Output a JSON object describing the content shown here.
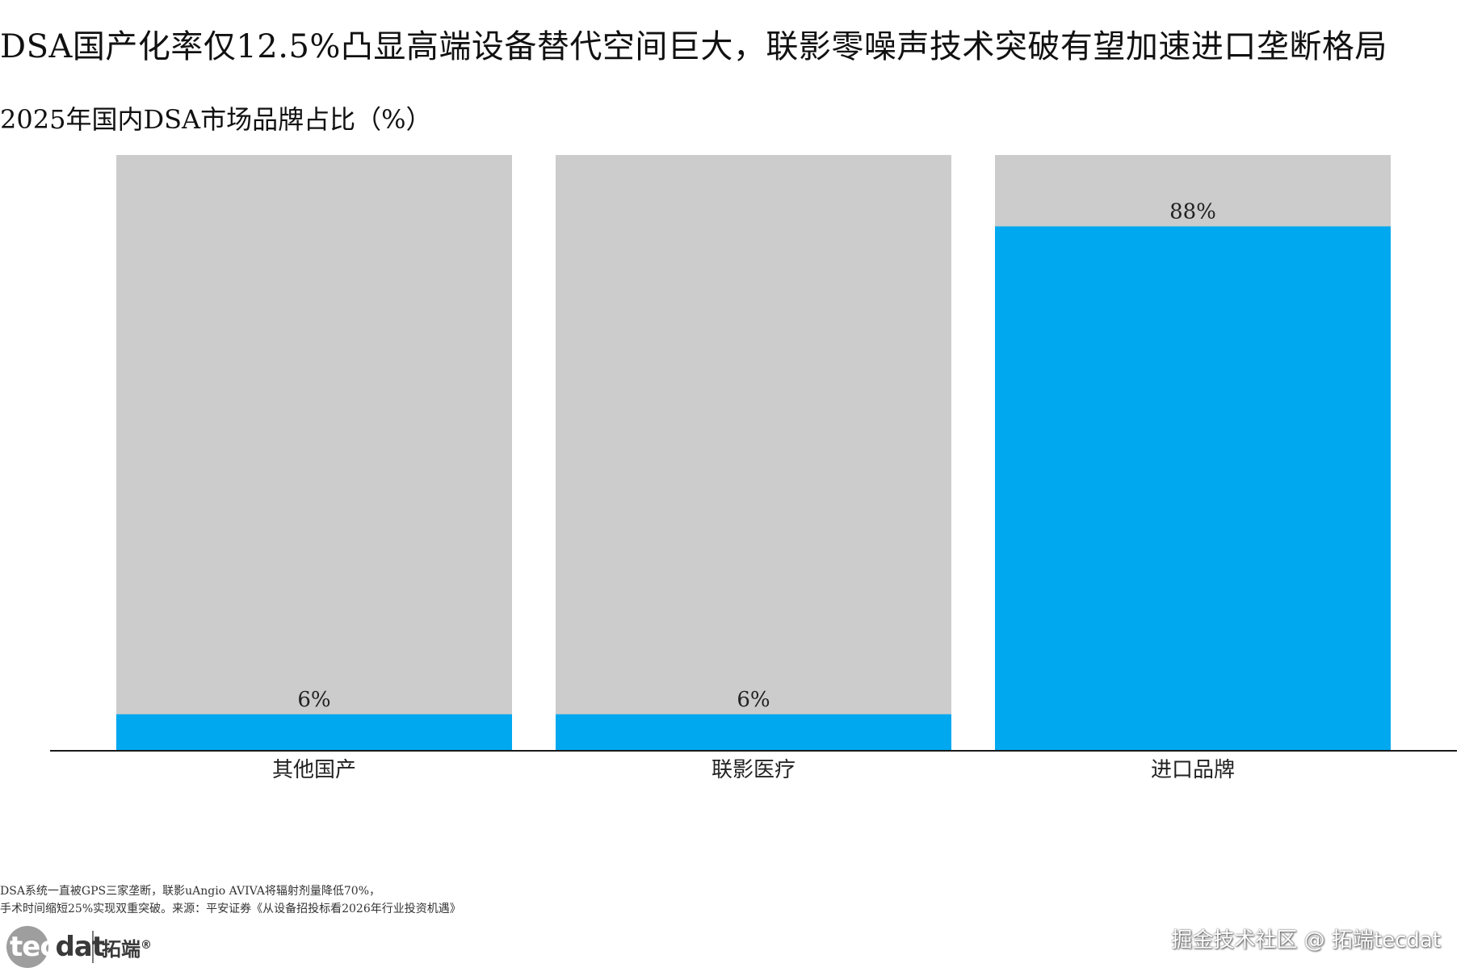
{
  "header": {
    "title": "DSA国产化率仅12.5%凸显高端设备替代空间巨大，联影零噪声技术突破有望加速进口垄断格局",
    "subtitle": "2025年国内DSA市场品牌占比（%）"
  },
  "chart_data": {
    "type": "bar",
    "categories": [
      "其他国产",
      "联影医疗",
      "进口品牌"
    ],
    "values": [
      6,
      6,
      88
    ],
    "value_labels": [
      "6%",
      "6%",
      "88%"
    ],
    "ylim": [
      0,
      100
    ],
    "xlabel": "",
    "ylabel": "",
    "grid": false,
    "legend": "none",
    "stacked_remainder": true,
    "colors": {
      "value": "#00a8f0",
      "remainder": "#cccccc",
      "axis": "#1a1a1a"
    }
  },
  "footnote": {
    "line1": "DSA系统一直被GPS三家垄断，联影uAngio AVIVA将辐射剂量降低70%，",
    "line2": "手术时间缩短25%实现双重突破。来源：平安证券《从设备招投标看2026年行业投资机遇》"
  },
  "logo": {
    "word_head": "tec",
    "word_tail": "dat",
    "cn_name": "拓端",
    "mark": "®"
  },
  "watermark": {
    "text": "掘金技术社区 @ 拓端tecdat"
  }
}
